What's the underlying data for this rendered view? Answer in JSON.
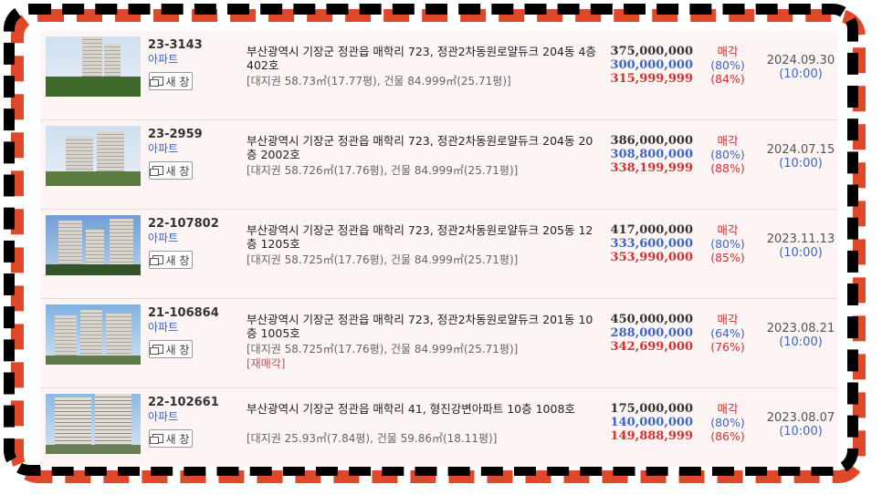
{
  "new_window_label": "새 창",
  "items": [
    {
      "case_no": "23-3143",
      "kind": "아파트",
      "address": "부산광역시 기장군 정관읍 매학리 723, 정관2차동원로얄듀크 204동 4층 402호",
      "area": "[대지권 58.73㎡(17.77평), 건물 84.999㎡(25.71평)]",
      "appraisal": "375,000,000",
      "minimum": "300,000,000",
      "sale_price": "315,999,999",
      "status": "매각",
      "min_ratio": "(80%)",
      "sale_ratio": "(84%)",
      "date": "2024.09.30",
      "time": "(10:00)"
    },
    {
      "case_no": "23-2959",
      "kind": "아파트",
      "address": "부산광역시 기장군 정관읍 매학리 723, 정관2차동원로얄듀크 204동 20층 2002호",
      "area": "[대지권 58.726㎡(17.76평), 건물 84.999㎡(25.71평)]",
      "appraisal": "386,000,000",
      "minimum": "308,800,000",
      "sale_price": "338,199,999",
      "status": "매각",
      "min_ratio": "(80%)",
      "sale_ratio": "(88%)",
      "date": "2024.07.15",
      "time": "(10:00)"
    },
    {
      "case_no": "22-107802",
      "kind": "아파트",
      "address": "부산광역시 기장군 정관읍 매학리 723, 정관2차동원로얄듀크 205동 12층 1205호",
      "area": "[대지권 58.725㎡(17.76평), 건물 84.999㎡(25.71평)]",
      "appraisal": "417,000,000",
      "minimum": "333,600,000",
      "sale_price": "353,990,000",
      "status": "매각",
      "min_ratio": "(80%)",
      "sale_ratio": "(85%)",
      "date": "2023.11.13",
      "time": "(10:00)"
    },
    {
      "case_no": "21-106864",
      "kind": "아파트",
      "address": "부산광역시 기장군 정관읍 매학리 723, 정관2차동원로얄듀크 201동 10층 1005호",
      "area": "[대지권 58.725㎡(17.76평), 건물 84.999㎡(25.71평)]",
      "note": "[재매각]",
      "appraisal": "450,000,000",
      "minimum": "288,000,000",
      "sale_price": "342,699,000",
      "status": "매각",
      "min_ratio": "(64%)",
      "sale_ratio": "(76%)",
      "date": "2023.08.21",
      "time": "(10:00)"
    },
    {
      "case_no": "22-102661",
      "kind": "아파트",
      "address": "부산광역시 기장군 정관읍 매학리 41, 형진강변아파트 10층 1008호",
      "area": "[대지권 25.93㎡(7.84평), 건물 59.86㎡(18.11평)]",
      "appraisal": "175,000,000",
      "minimum": "140,000,000",
      "sale_price": "149,888,999",
      "status": "매각",
      "min_ratio": "(80%)",
      "sale_ratio": "(86%)",
      "date": "2023.08.07",
      "time": "(10:00)"
    }
  ]
}
